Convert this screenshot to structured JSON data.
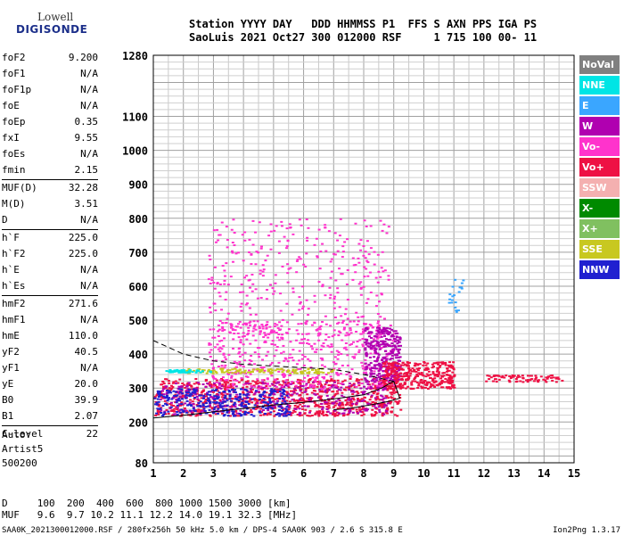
{
  "logo": {
    "line1": "Lowell",
    "line2": "DIGISONDE"
  },
  "header": {
    "line1": "Station YYYY DAY   DDD HHMMSS P1  FFS S AXN PPS IGA PS",
    "line2": "SaoLuis 2021 Oct27 300 012000 RSF     1 715 100 00- 11"
  },
  "params": [
    {
      "k": "foF2",
      "v": "9.200"
    },
    {
      "k": "foF1",
      "v": "N/A"
    },
    {
      "k": "foF1p",
      "v": "N/A"
    },
    {
      "k": "foE",
      "v": "N/A"
    },
    {
      "k": "foEp",
      "v": "0.35"
    },
    {
      "k": "fxI",
      "v": "9.55"
    },
    {
      "k": "foEs",
      "v": "N/A"
    },
    {
      "k": "fmin",
      "v": "2.15"
    },
    {
      "k": "MUF(D)",
      "v": "32.28"
    },
    {
      "k": "M(D)",
      "v": "3.51"
    },
    {
      "k": "D",
      "v": "N/A"
    },
    {
      "k": "h`F",
      "v": "225.0"
    },
    {
      "k": "h`F2",
      "v": "225.0"
    },
    {
      "k": "h`E",
      "v": "N/A"
    },
    {
      "k": "h`Es",
      "v": "N/A"
    },
    {
      "k": "hmF2",
      "v": "271.6"
    },
    {
      "k": "hmF1",
      "v": "N/A"
    },
    {
      "k": "hmE",
      "v": "110.0"
    },
    {
      "k": "yF2",
      "v": "40.5"
    },
    {
      "k": "yF1",
      "v": "N/A"
    },
    {
      "k": "yE",
      "v": "20.0"
    },
    {
      "k": "B0",
      "v": "39.9"
    },
    {
      "k": "B1",
      "v": "2.07"
    },
    {
      "k": "C-level",
      "v": "22"
    }
  ],
  "auto": {
    "l1": "Auto:",
    "l2": "Artist5",
    "l3": "500200"
  },
  "footer": {
    "d_line": "D     100  200  400  600  800 1000 1500 3000 [km]",
    "muf_line": "MUF   9.6  9.7 10.2 11.1 12.2 14.0 19.1 32.3 [MHz]",
    "file_line": "SAA0K_2021300012000.RSF / 280fx256h 50 kHz 5.0 km / DPS-4 SAA0K 903 / 2.6 S 315.8 E",
    "version": "Ion2Png 1.3.17"
  },
  "legend": [
    {
      "label": "NoVal",
      "color": "#808080"
    },
    {
      "label": "NNE",
      "color": "#00e5e5"
    },
    {
      "label": "E",
      "color": "#3aa6ff"
    },
    {
      "label": "W",
      "color": "#b000b0"
    },
    {
      "label": "Vo-",
      "color": "#ff33cc"
    },
    {
      "label": "Vo+",
      "color": "#ee1144"
    },
    {
      "label": "SSW",
      "color": "#f4b0b0"
    },
    {
      "label": "X-",
      "color": "#008a00"
    },
    {
      "label": "X+",
      "color": "#80c060"
    },
    {
      "label": "SSE",
      "color": "#c8c820"
    },
    {
      "label": "NNW",
      "color": "#2020d0"
    }
  ],
  "chart_data": {
    "type": "scatter",
    "x_ticks": [
      1,
      2,
      3,
      4,
      5,
      6,
      7,
      8,
      9,
      10,
      11,
      12,
      13,
      14,
      15
    ],
    "y_ticks": [
      80,
      200,
      300,
      400,
      500,
      600,
      700,
      800,
      900,
      1000,
      1100,
      1280
    ],
    "xlim": [
      1,
      15
    ],
    "ylim": [
      80,
      1280
    ],
    "grid": true,
    "legend_position": "right",
    "traces": [
      {
        "style": "solid",
        "x": [
          1.0,
          2.0,
          3.0,
          4.0,
          5.0,
          6.0,
          7.0,
          8.0,
          8.6,
          9.0,
          9.2,
          8.8,
          8.2,
          7.5,
          7.0
        ],
        "y": [
          212,
          220,
          230,
          240,
          250,
          258,
          268,
          280,
          300,
          320,
          270,
          260,
          250,
          240,
          236
        ]
      },
      {
        "style": "dashed",
        "x": [
          1.0,
          2.0,
          3.0,
          4.0,
          5.0,
          6.0,
          7.0,
          8.0,
          9.0
        ],
        "y": [
          440,
          400,
          380,
          370,
          365,
          360,
          355,
          340,
          320
        ]
      }
    ],
    "echo_clusters": [
      {
        "color": "#ee1144",
        "x": [
          1.0,
          9.2
        ],
        "y": [
          220,
          330
        ],
        "n": 900
      },
      {
        "color": "#b000b0",
        "x": [
          1.2,
          8.8
        ],
        "y": [
          225,
          320
        ],
        "n": 350
      },
      {
        "color": "#2020d0",
        "x": [
          1.0,
          5.5
        ],
        "y": [
          220,
          300
        ],
        "n": 300
      },
      {
        "color": "#ff33cc",
        "x": [
          2.8,
          9.0
        ],
        "y": [
          300,
          500
        ],
        "n": 500
      },
      {
        "color": "#ff33cc",
        "x": [
          2.8,
          8.8
        ],
        "y": [
          450,
          800
        ],
        "n": 350
      },
      {
        "color": "#b000b0",
        "x": [
          8.0,
          9.2
        ],
        "y": [
          320,
          480
        ],
        "n": 300
      },
      {
        "color": "#ee1144",
        "x": [
          8.6,
          11.0
        ],
        "y": [
          300,
          380
        ],
        "n": 350
      },
      {
        "color": "#ee1144",
        "x": [
          12.0,
          14.6
        ],
        "y": [
          320,
          340
        ],
        "n": 80
      },
      {
        "color": "#c8c820",
        "x": [
          2.0,
          7.0
        ],
        "y": [
          345,
          360
        ],
        "n": 120
      },
      {
        "color": "#00e5e5",
        "x": [
          1.4,
          3.0
        ],
        "y": [
          348,
          356
        ],
        "n": 50
      },
      {
        "color": "#3aa6ff",
        "x": [
          10.8,
          11.3
        ],
        "y": [
          520,
          640
        ],
        "n": 20
      }
    ]
  }
}
